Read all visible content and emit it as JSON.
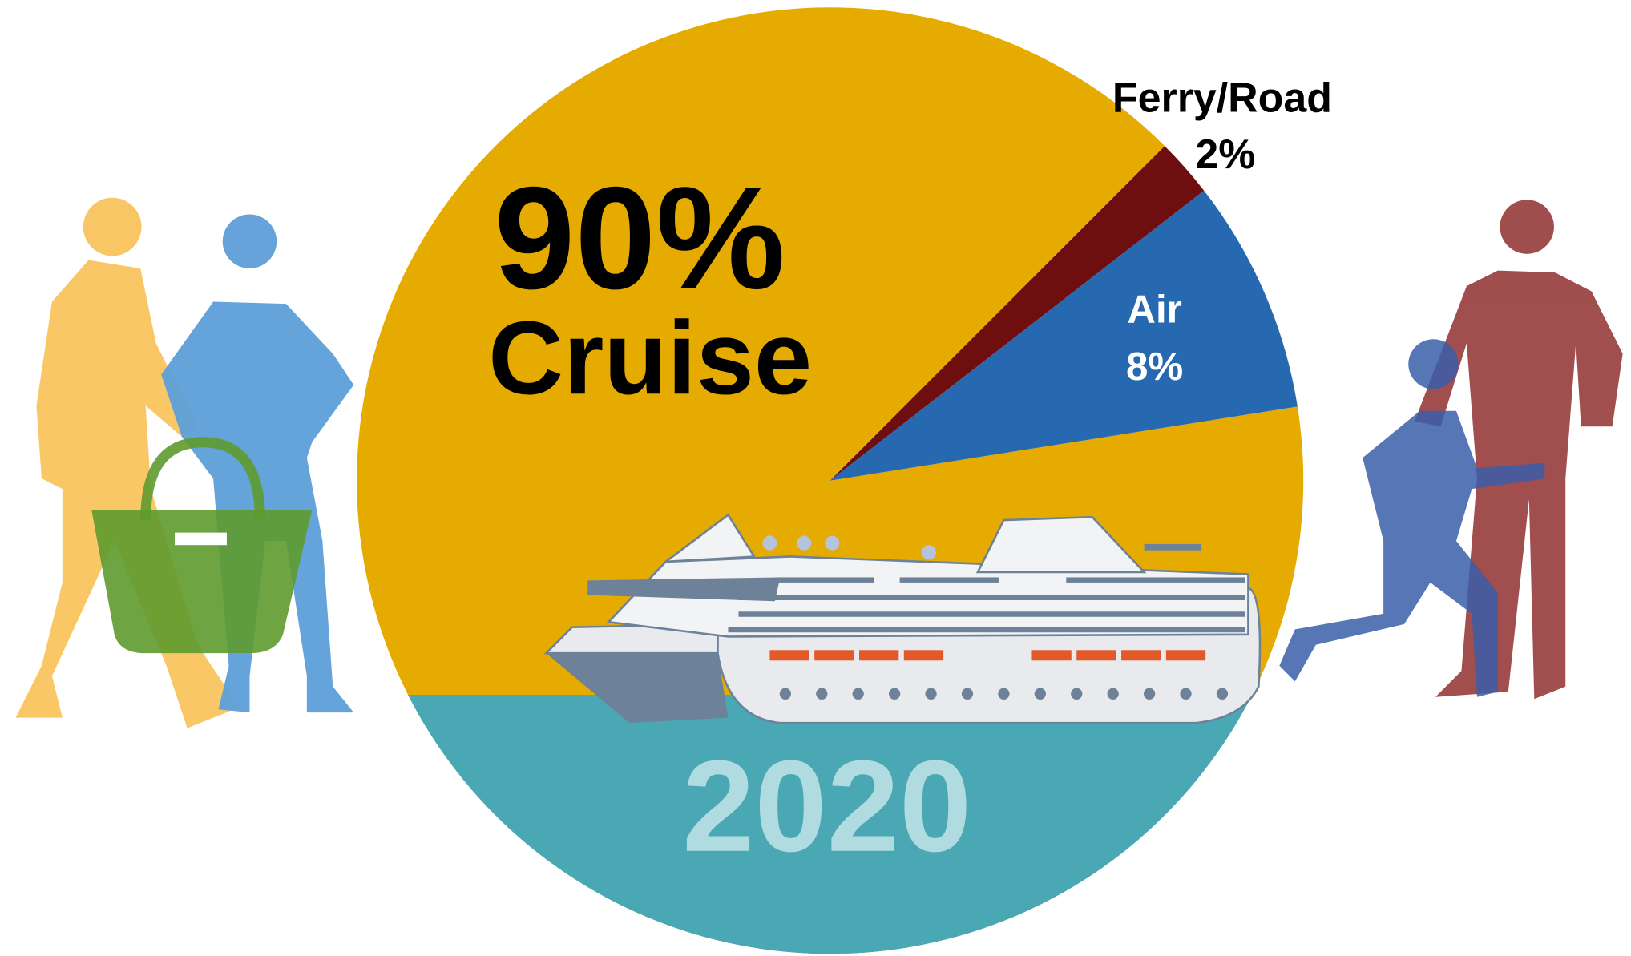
{
  "chart_data": {
    "type": "pie",
    "title": "2020",
    "categories": [
      "Cruise",
      "Ferry/Road",
      "Air"
    ],
    "values": [
      90,
      2,
      8
    ],
    "value_labels": [
      "90%",
      "2%",
      "8%"
    ],
    "colors": [
      "#e6ab00",
      "#6e0e0e",
      "#2769b0"
    ]
  }
}
